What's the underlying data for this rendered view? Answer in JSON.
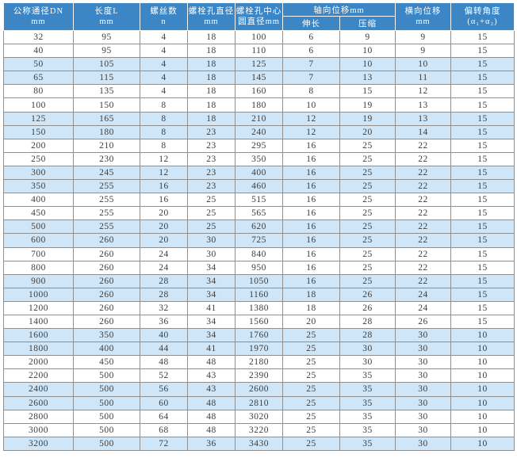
{
  "colors": {
    "header_bg": "#3c86c5",
    "header_text": "#ffffff",
    "alt_row_bg": "#cfe6f8",
    "row_bg": "#ffffff",
    "grid_border": "#8f8f8f",
    "cell_text": "#3d3d3d"
  },
  "chart_data": {
    "type": "table",
    "columns": [
      {
        "id": "dn",
        "label": "公称通径DN",
        "unit": "mm"
      },
      {
        "id": "length",
        "label": "长度L",
        "unit": "mm"
      },
      {
        "id": "screw-count",
        "label": "螺丝数",
        "unit": "n"
      },
      {
        "id": "bolt-hole-diameter",
        "label": "螺栓孔直径",
        "unit": "mm"
      },
      {
        "id": "bolt-circle-diameter",
        "label": "螺栓孔中心",
        "unit": "圆直径mm"
      },
      {
        "id": "axial-displacement",
        "label": "轴向位移mm",
        "sub": [
          {
            "id": "extension",
            "label": "伸长"
          },
          {
            "id": "compression",
            "label": "压缩"
          }
        ]
      },
      {
        "id": "lateral-displacement",
        "label": "横向位移",
        "unit": "mm"
      },
      {
        "id": "deflection-angle",
        "label": "偏转角度",
        "unit": "(α₁+α₂)"
      }
    ],
    "cell_ids": [
      "dn",
      "length",
      "screw-count",
      "bolt-hole-diameter",
      "bolt-circle-diameter",
      "extension",
      "compression",
      "lateral-displacement",
      "deflection-angle"
    ],
    "rows": [
      [
        "32",
        "95",
        "4",
        "18",
        "100",
        "6",
        "9",
        "9",
        "15"
      ],
      [
        "40",
        "95",
        "4",
        "18",
        "110",
        "6",
        "10",
        "9",
        "15"
      ],
      [
        "50",
        "105",
        "4",
        "18",
        "125",
        "7",
        "10",
        "10",
        "15"
      ],
      [
        "65",
        "115",
        "4",
        "18",
        "145",
        "7",
        "13",
        "11",
        "15"
      ],
      [
        "80",
        "135",
        "4",
        "18",
        "160",
        "8",
        "15",
        "12",
        "15"
      ],
      [
        "100",
        "150",
        "8",
        "18",
        "180",
        "10",
        "19",
        "13",
        "15"
      ],
      [
        "125",
        "165",
        "8",
        "18",
        "210",
        "12",
        "19",
        "13",
        "15"
      ],
      [
        "150",
        "180",
        "8",
        "23",
        "240",
        "12",
        "20",
        "14",
        "15"
      ],
      [
        "200",
        "210",
        "8",
        "23",
        "295",
        "16",
        "25",
        "22",
        "15"
      ],
      [
        "250",
        "230",
        "12",
        "23",
        "350",
        "16",
        "25",
        "22",
        "15"
      ],
      [
        "300",
        "245",
        "12",
        "23",
        "400",
        "16",
        "25",
        "22",
        "15"
      ],
      [
        "350",
        "255",
        "16",
        "23",
        "460",
        "16",
        "25",
        "22",
        "15"
      ],
      [
        "400",
        "255",
        "16",
        "25",
        "515",
        "16",
        "25",
        "22",
        "15"
      ],
      [
        "450",
        "255",
        "20",
        "25",
        "565",
        "16",
        "25",
        "22",
        "15"
      ],
      [
        "500",
        "255",
        "20",
        "25",
        "620",
        "16",
        "25",
        "22",
        "15"
      ],
      [
        "600",
        "260",
        "20",
        "30",
        "725",
        "16",
        "25",
        "22",
        "15"
      ],
      [
        "700",
        "260",
        "24",
        "30",
        "840",
        "16",
        "25",
        "22",
        "15"
      ],
      [
        "800",
        "260",
        "24",
        "34",
        "950",
        "16",
        "25",
        "22",
        "15"
      ],
      [
        "900",
        "260",
        "28",
        "34",
        "1050",
        "16",
        "25",
        "22",
        "15"
      ],
      [
        "1000",
        "260",
        "28",
        "34",
        "1160",
        "18",
        "26",
        "24",
        "15"
      ],
      [
        "1200",
        "260",
        "32",
        "41",
        "1380",
        "18",
        "26",
        "24",
        "15"
      ],
      [
        "1400",
        "260",
        "36",
        "34",
        "1560",
        "20",
        "28",
        "26",
        "15"
      ],
      [
        "1600",
        "350",
        "40",
        "34",
        "1760",
        "25",
        "28",
        "30",
        "10"
      ],
      [
        "1800",
        "400",
        "44",
        "41",
        "1970",
        "25",
        "30",
        "30",
        "10"
      ],
      [
        "2000",
        "450",
        "48",
        "48",
        "2180",
        "25",
        "30",
        "30",
        "10"
      ],
      [
        "2200",
        "500",
        "52",
        "43",
        "2390",
        "25",
        "35",
        "30",
        "10"
      ],
      [
        "2400",
        "500",
        "56",
        "43",
        "2600",
        "25",
        "35",
        "30",
        "10"
      ],
      [
        "2600",
        "500",
        "60",
        "48",
        "2810",
        "25",
        "35",
        "30",
        "10"
      ],
      [
        "2800",
        "500",
        "64",
        "48",
        "3020",
        "25",
        "35",
        "30",
        "10"
      ],
      [
        "3000",
        "500",
        "68",
        "48",
        "3220",
        "25",
        "35",
        "30",
        "10"
      ],
      [
        "3200",
        "500",
        "72",
        "36",
        "3430",
        "25",
        "35",
        "30",
        "10"
      ]
    ]
  }
}
